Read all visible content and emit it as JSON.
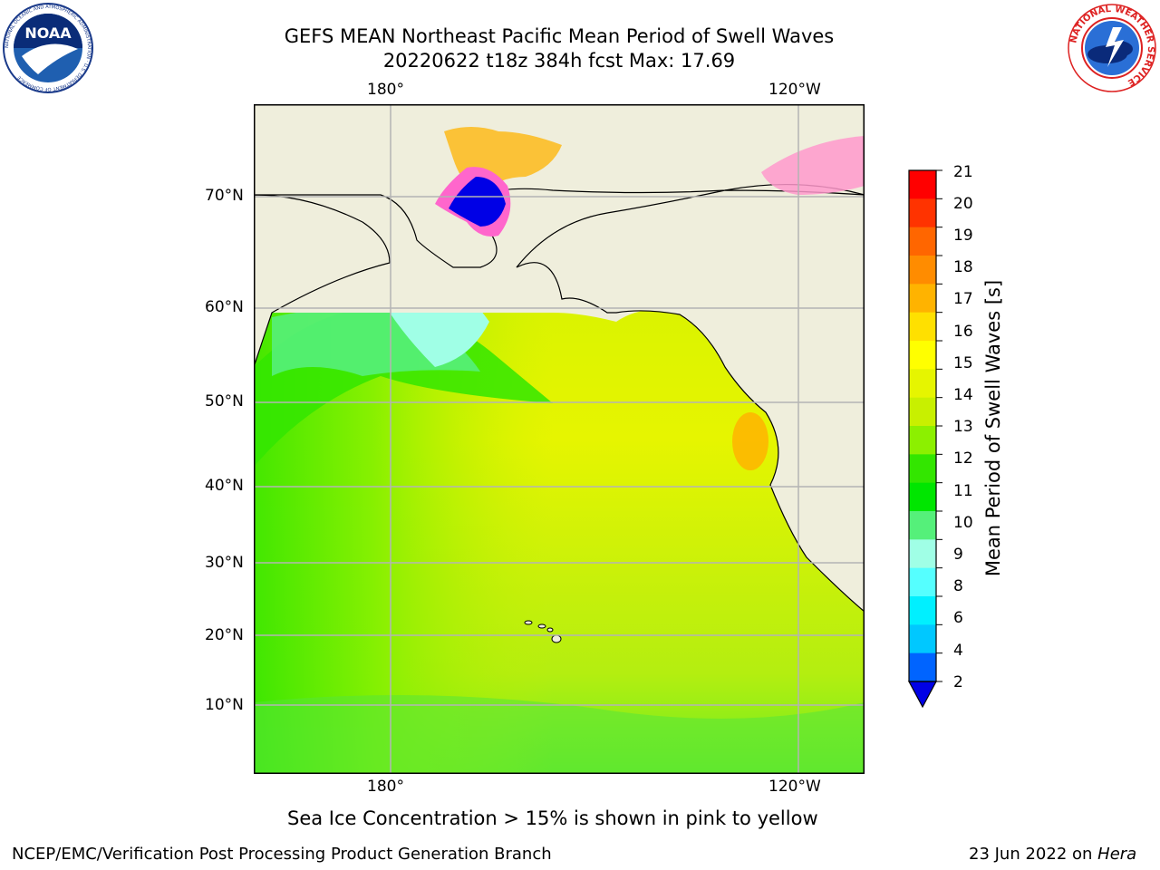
{
  "header": {
    "title_line1": "GEFS MEAN Northeast Pacific Mean Period of Swell Waves",
    "title_line2": "20220622 t18z 384h fcst   Max: 17.69"
  },
  "logos": {
    "noaa": {
      "text": "NOAA",
      "ring_text": "NATIONAL OCEANIC AND ATMOSPHERIC ADMINISTRATION · U.S. DEPARTMENT OF COMMERCE"
    },
    "nws": {
      "ring_text": "NATIONAL WEATHER SERVICE"
    }
  },
  "map": {
    "top_lon_labels": [
      "180°",
      "120°W"
    ],
    "bottom_lon_labels": [
      "180°",
      "120°W"
    ],
    "lat_labels": [
      "70°N",
      "60°N",
      "50°N",
      "40°N",
      "30°N",
      "20°N",
      "10°N"
    ]
  },
  "colorbar": {
    "label": "Mean Period of Swell Waves [s]",
    "ticks": [
      "21",
      "20",
      "19",
      "18",
      "17",
      "16",
      "15",
      "14",
      "13",
      "12",
      "11",
      "10",
      "9",
      "8",
      "6",
      "4",
      "2"
    ],
    "colors": [
      "#ff0000",
      "#ff3300",
      "#ff6600",
      "#ff8c00",
      "#ffb300",
      "#ffe000",
      "#ffff00",
      "#e6f500",
      "#c8f000",
      "#8cf000",
      "#33e600",
      "#00e600",
      "#55f07a",
      "#a0ffe6",
      "#55ffff",
      "#00f0ff",
      "#00c8ff",
      "#0064ff",
      "#0000e6"
    ]
  },
  "note": "Sea Ice Concentration > 15% is shown in pink to yellow",
  "footer": {
    "left": "NCEP/EMC/Verification Post Processing Product Generation Branch",
    "right_date": "23 Jun 2022 on ",
    "right_host": "Hera"
  }
}
